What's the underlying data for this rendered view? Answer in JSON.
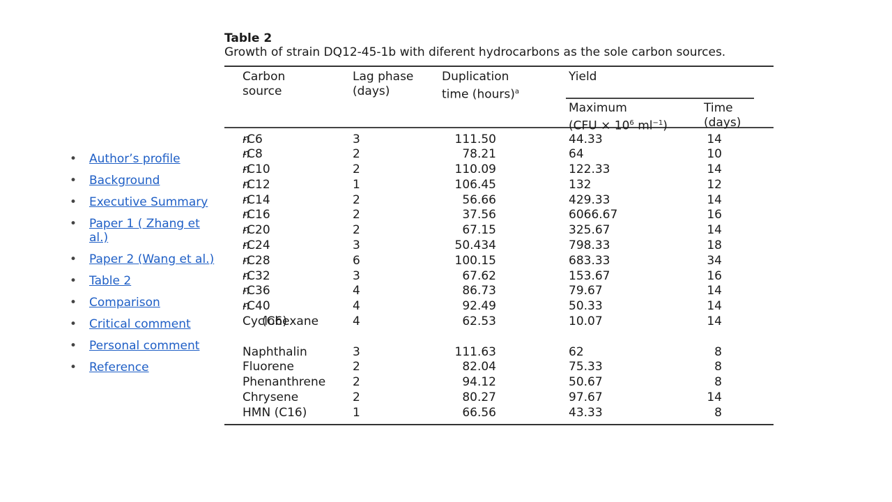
{
  "nav": {
    "items": [
      {
        "label": "Author’s profile"
      },
      {
        "label": "Background"
      },
      {
        "label": "Executive Summary"
      },
      {
        "label": "Paper 1 ( Zhang et al.)"
      },
      {
        "label": "Paper 2 (Wang et al.)"
      },
      {
        "label": "Table 2"
      },
      {
        "label": "Comparison"
      },
      {
        "label": "Critical comment"
      },
      {
        "label": "Personal comment"
      },
      {
        "label": "Reference"
      }
    ],
    "link_color": "#1f5fc6"
  },
  "table": {
    "label": "Table 2",
    "caption": "Growth of strain DQ12-45-1b with diferent hydrocarbons as the sole carbon sources.",
    "headers": {
      "carbon_source_1": "Carbon",
      "carbon_source_2": "source",
      "lag_1": "Lag phase",
      "lag_2": "(days)",
      "dup_1": "Duplication",
      "dup_2": "time (hours)",
      "dup_sup": "a",
      "yield": "Yield",
      "max_1": "Maximum",
      "max_2a": "(CFU × 10",
      "max_2_sup1": "6",
      "max_2b": " ml",
      "max_2_sup2": "−1",
      "max_2c": ")",
      "time_1": "Time",
      "time_2": "(days)"
    },
    "rows": [
      {
        "prefix": "n",
        "name": "-C6",
        "lag": "3",
        "dup": "111.50",
        "max": "44.33",
        "time": "14"
      },
      {
        "prefix": "n",
        "name": "-C8",
        "lag": "2",
        "dup": "78.21",
        "max": "64",
        "time": "10"
      },
      {
        "prefix": "n",
        "name": "-C10",
        "lag": "2",
        "dup": "110.09",
        "max": "122.33",
        "time": "14"
      },
      {
        "prefix": "n",
        "name": "-C12",
        "lag": "1",
        "dup": "106.45",
        "max": "132",
        "time": "12"
      },
      {
        "prefix": "n",
        "name": "-C14",
        "lag": "2",
        "dup": "56.66",
        "max": "429.33",
        "time": "14"
      },
      {
        "prefix": "n",
        "name": "-C16",
        "lag": "2",
        "dup": "37.56",
        "max": "6066.67",
        "time": "16"
      },
      {
        "prefix": "n",
        "name": "-C20",
        "lag": "2",
        "dup": "67.15",
        "max": "325.67",
        "time": "14"
      },
      {
        "prefix": "n",
        "name": "-C24",
        "lag": "3",
        "dup": "50.434",
        "max": "798.33",
        "time": "18"
      },
      {
        "prefix": "n",
        "name": "-C28",
        "lag": "6",
        "dup": "100.15",
        "max": "683.33",
        "time": "34"
      },
      {
        "prefix": "n",
        "name": "-C32",
        "lag": "3",
        "dup": "67.62",
        "max": "153.67",
        "time": "16"
      },
      {
        "prefix": "n",
        "name": "-C36",
        "lag": "4",
        "dup": "86.73",
        "max": "79.67",
        "time": "14"
      },
      {
        "prefix": "n",
        "name": "-C40",
        "lag": "4",
        "dup": "92.49",
        "max": "50.33",
        "time": "14"
      },
      {
        "prefix": "",
        "name": "Cyclohexane",
        "name2": "(C6)",
        "lag": "4",
        "dup": "62.53",
        "max": "10.07",
        "time": "14"
      },
      {
        "prefix": "",
        "name": "Naphthalin",
        "lag": "3",
        "dup": "111.63",
        "max": "62",
        "time": "8"
      },
      {
        "prefix": "",
        "name": "Fluorene",
        "lag": "2",
        "dup": "82.04",
        "max": "75.33",
        "time": "8"
      },
      {
        "prefix": "",
        "name": "Phenanthrene",
        "lag": "2",
        "dup": "94.12",
        "max": "50.67",
        "time": "8"
      },
      {
        "prefix": "",
        "name": "Chrysene",
        "lag": "2",
        "dup": "80.27",
        "max": "97.67",
        "time": "14"
      },
      {
        "prefix": "",
        "name": "HMN (C16)",
        "lag": "1",
        "dup": "66.56",
        "max": "43.33",
        "time": "8"
      }
    ]
  }
}
